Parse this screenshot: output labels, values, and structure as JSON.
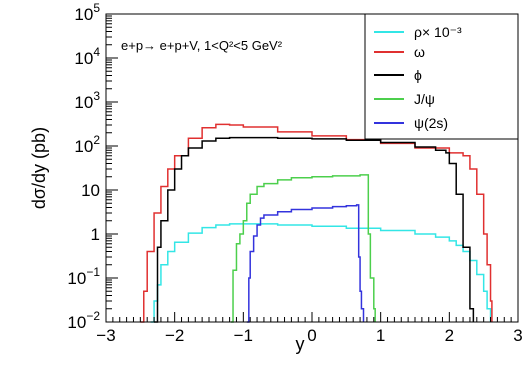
{
  "chart_data": {
    "type": "line",
    "title": "",
    "annotation": "e+p→ e+p+V, 1<Q²<5 GeV²",
    "xlabel": "y",
    "ylabel": "dσ/dy (pb)",
    "xlim": [
      -3,
      3
    ],
    "ylim": [
      0.01,
      100000
    ],
    "yscale": "log",
    "grid": false,
    "legend_position": "top-right",
    "x_ticks": [
      {
        "value": -3,
        "label": "−3"
      },
      {
        "value": -2,
        "label": "−2"
      },
      {
        "value": -1,
        "label": "−1"
      },
      {
        "value": 0,
        "label": "0"
      },
      {
        "value": 1,
        "label": "1"
      },
      {
        "value": 2,
        "label": "2"
      },
      {
        "value": 3,
        "label": "3"
      }
    ],
    "y_ticks": [
      {
        "value": 0.01,
        "base": "10",
        "exp": "−2"
      },
      {
        "value": 0.1,
        "base": "10",
        "exp": "−1"
      },
      {
        "value": 1,
        "base": "1",
        "exp": ""
      },
      {
        "value": 10,
        "base": "10",
        "exp": ""
      },
      {
        "value": 100,
        "base": "10",
        "exp": "2"
      },
      {
        "value": 1000,
        "base": "10",
        "exp": "3"
      },
      {
        "value": 10000,
        "base": "10",
        "exp": "4"
      },
      {
        "value": 100000,
        "base": "10",
        "exp": "5"
      }
    ],
    "series": [
      {
        "name": "ρ× 10⁻³",
        "color": "#33e6e6",
        "x": [
          -2.35,
          -2.3,
          -2.25,
          -2.2,
          -2.1,
          -2.0,
          -1.8,
          -1.6,
          -1.4,
          -1.2,
          -1.0,
          -0.5,
          0.0,
          0.5,
          1.0,
          1.5,
          1.8,
          2.0,
          2.1,
          2.2,
          2.3,
          2.4,
          2.5,
          2.55,
          2.6
        ],
        "y": [
          0.01,
          0.03,
          0.07,
          0.2,
          0.4,
          0.65,
          1.05,
          1.4,
          1.6,
          1.7,
          1.7,
          1.6,
          1.5,
          1.35,
          1.2,
          1.0,
          0.85,
          0.7,
          0.55,
          0.4,
          0.25,
          0.12,
          0.05,
          0.02,
          0.01
        ]
      },
      {
        "name": "ω",
        "color": "#e03030",
        "x": [
          -2.5,
          -2.45,
          -2.4,
          -2.3,
          -2.2,
          -2.1,
          -2.0,
          -1.8,
          -1.6,
          -1.4,
          -1.2,
          -1.0,
          -0.5,
          0.0,
          0.5,
          1.0,
          1.5,
          2.0,
          2.2,
          2.3,
          2.4,
          2.5,
          2.55,
          2.6,
          2.62
        ],
        "y": [
          0.01,
          0.05,
          0.4,
          3,
          12,
          30,
          60,
          150,
          260,
          310,
          300,
          270,
          210,
          170,
          140,
          115,
          90,
          70,
          60,
          30,
          8,
          1,
          0.2,
          0.03,
          0.01
        ]
      },
      {
        "name": "ϕ",
        "color": "#000000",
        "x": [
          -2.3,
          -2.25,
          -2.2,
          -2.1,
          -2.0,
          -1.9,
          -1.8,
          -1.6,
          -1.4,
          -1.2,
          -1.0,
          -0.5,
          0.0,
          0.5,
          1.0,
          1.5,
          1.8,
          1.95,
          2.0,
          2.1,
          2.2,
          2.3,
          2.35
        ],
        "y": [
          0.01,
          0.5,
          2,
          10,
          30,
          60,
          90,
          130,
          150,
          155,
          155,
          150,
          145,
          135,
          120,
          95,
          80,
          70,
          40,
          8,
          0.5,
          0.02,
          0.01
        ]
      },
      {
        "name": "J/ψ",
        "color": "#4ccf4c",
        "x": [
          -1.18,
          -1.15,
          -1.1,
          -1.05,
          -1.0,
          -0.95,
          -0.9,
          -0.8,
          -0.7,
          -0.5,
          -0.3,
          0.0,
          0.3,
          0.5,
          0.7,
          0.8,
          0.82,
          0.85,
          0.9,
          0.92
        ],
        "y": [
          0.01,
          0.15,
          0.6,
          1.0,
          2.0,
          5,
          8,
          12,
          14,
          17,
          19,
          20,
          21,
          21,
          22,
          22,
          1,
          0.1,
          0.02,
          0.01
        ]
      },
      {
        "name": "ψ(2s)",
        "color": "#3333dd",
        "x": [
          -0.95,
          -0.92,
          -0.9,
          -0.85,
          -0.8,
          -0.75,
          -0.7,
          -0.5,
          -0.3,
          0.0,
          0.3,
          0.5,
          0.65,
          0.68,
          0.7,
          0.72,
          0.75
        ],
        "y": [
          0.01,
          0.1,
          0.4,
          0.9,
          1.6,
          2.3,
          2.7,
          3.2,
          3.6,
          3.9,
          4.2,
          4.4,
          4.6,
          0.3,
          0.05,
          0.02,
          0.01
        ]
      }
    ]
  }
}
